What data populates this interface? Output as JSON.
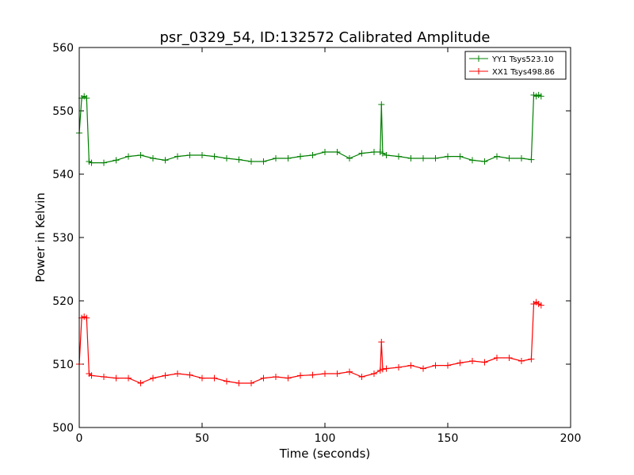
{
  "chart_data": {
    "type": "line",
    "title": "psr_0329_54, ID:132572 Calibrated Amplitude",
    "xlabel": "Time (seconds)",
    "ylabel": "Power in Kelvin",
    "xlim": [
      0,
      200
    ],
    "ylim": [
      500,
      560
    ],
    "xticks": [
      0,
      50,
      100,
      150,
      200
    ],
    "yticks": [
      500,
      510,
      520,
      530,
      540,
      550,
      560
    ],
    "grid": false,
    "legend_position": "top-right",
    "marker": "plus",
    "series": [
      {
        "name": "YY1 Tsys523.10",
        "color": "#008000",
        "x": [
          0,
          1,
          2,
          3,
          4,
          5,
          10,
          15,
          20,
          25,
          30,
          35,
          40,
          45,
          50,
          55,
          60,
          65,
          70,
          75,
          80,
          85,
          90,
          95,
          100,
          105,
          110,
          115,
          120,
          122.5,
          123,
          123.5,
          125,
          130,
          135,
          140,
          145,
          150,
          155,
          160,
          165,
          170,
          175,
          180,
          184,
          185,
          186,
          187,
          188
        ],
        "values": [
          546.5,
          552.0,
          552.3,
          552.0,
          542.0,
          541.8,
          541.8,
          542.2,
          542.8,
          543.0,
          542.5,
          542.2,
          542.8,
          543.0,
          543.0,
          542.8,
          542.5,
          542.3,
          542.0,
          542.0,
          542.5,
          542.5,
          542.8,
          543.0,
          543.5,
          543.5,
          542.5,
          543.3,
          543.5,
          543.5,
          551.0,
          543.3,
          543.0,
          542.8,
          542.5,
          542.5,
          542.5,
          542.8,
          542.8,
          542.2,
          542.0,
          542.8,
          542.5,
          542.5,
          542.3,
          552.5,
          552.3,
          552.5,
          552.3
        ]
      },
      {
        "name": "XX1 Tsys498.86",
        "color": "#ff0000",
        "x": [
          0,
          1,
          2,
          3,
          4,
          5,
          10,
          15,
          20,
          25,
          30,
          35,
          40,
          45,
          50,
          55,
          60,
          65,
          70,
          75,
          80,
          85,
          90,
          95,
          100,
          105,
          110,
          115,
          120,
          122.5,
          123,
          123.5,
          125,
          130,
          135,
          140,
          145,
          150,
          155,
          160,
          165,
          170,
          175,
          180,
          184,
          185,
          186,
          187,
          188
        ],
        "values": [
          510.0,
          517.3,
          517.5,
          517.3,
          508.5,
          508.2,
          508.0,
          507.8,
          507.8,
          507.0,
          507.8,
          508.2,
          508.5,
          508.3,
          507.8,
          507.8,
          507.3,
          507.0,
          507.0,
          507.8,
          508.0,
          507.8,
          508.2,
          508.3,
          508.5,
          508.5,
          508.8,
          508.0,
          508.5,
          509.0,
          513.5,
          509.2,
          509.3,
          509.5,
          509.8,
          509.3,
          509.8,
          509.8,
          510.2,
          510.5,
          510.3,
          511.0,
          511.0,
          510.5,
          510.8,
          519.5,
          519.8,
          519.5,
          519.3
        ]
      }
    ]
  }
}
